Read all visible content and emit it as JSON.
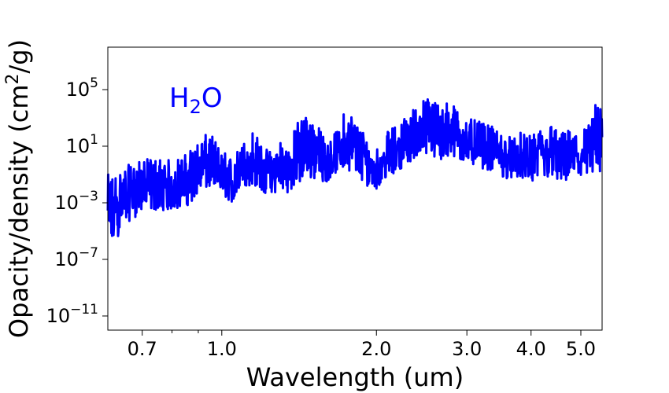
{
  "chart_data": {
    "type": "line",
    "title": "",
    "xlabel": "Wavelength  (um)",
    "ylabel": {
      "main": "Opacity/density  (cm",
      "exp": "2",
      "tail": "/g)"
    },
    "x_scale": "log",
    "y_scale": "log",
    "xlim": [
      0.6,
      5.5
    ],
    "ylim": [
      1e-12,
      100000000.0
    ],
    "x_ticks": [
      {
        "value": 0.7,
        "label": "0.7"
      },
      {
        "value": 1.0,
        "label": "1.0"
      },
      {
        "value": 2.0,
        "label": "2.0"
      },
      {
        "value": 3.0,
        "label": "3.0"
      },
      {
        "value": 4.0,
        "label": "4.0"
      },
      {
        "value": 5.0,
        "label": "5.0"
      }
    ],
    "x_minor_ticks": [
      0.8,
      0.9
    ],
    "y_ticks": [
      {
        "value": 100000.0,
        "base": "10",
        "exp": "5"
      },
      {
        "value": 10.0,
        "base": "10",
        "exp": "1"
      },
      {
        "value": 0.001,
        "base": "10",
        "exp": "−3"
      },
      {
        "value": 1e-07,
        "base": "10",
        "exp": "−7"
      },
      {
        "value": 1e-11,
        "base": "10",
        "exp": "−11"
      }
    ],
    "grid": false,
    "annotation": {
      "main": "H",
      "sub": "2",
      "tail": "O"
    },
    "series": [
      {
        "color": "#0000ff",
        "x": [
          0.6,
          0.63,
          0.66,
          0.7,
          0.75,
          0.8,
          0.85,
          0.9,
          0.95,
          1.0,
          1.05,
          1.1,
          1.15,
          1.2,
          1.25,
          1.3,
          1.35,
          1.4,
          1.45,
          1.5,
          1.55,
          1.6,
          1.65,
          1.7,
          1.75,
          1.8,
          1.85,
          1.9,
          1.95,
          2.0,
          2.1,
          2.2,
          2.3,
          2.4,
          2.5,
          2.6,
          2.7,
          2.8,
          2.9,
          3.0,
          3.2,
          3.4,
          3.6,
          3.8,
          4.0,
          4.2,
          4.4,
          4.6,
          4.8,
          5.0,
          5.2,
          5.4,
          5.5
        ],
        "y_mid": [
          0.0001,
          0.001,
          0.01,
          0.03,
          0.01,
          0.01,
          0.05,
          0.3,
          1.0,
          0.1,
          0.02,
          1.0,
          1.0,
          0.2,
          0.1,
          0.5,
          0.2,
          20.0,
          50.0,
          20.0,
          2.0,
          1.0,
          2.0,
          5.0,
          30.0,
          20.0,
          5.0,
          1.0,
          0.5,
          0.3,
          2.0,
          10.0,
          30.0,
          200.0,
          500.0,
          300.0,
          200.0,
          300.0,
          50.0,
          20.0,
          10.0,
          5.0,
          2.0,
          2.0,
          1.0,
          5.0,
          3.0,
          2.0,
          3.0,
          2.0,
          5.0,
          10.0,
          10.0
        ],
        "y_low": [
          1e-07,
          5e-06,
          5e-05,
          0.0002,
          0.0003,
          0.0003,
          0.0005,
          0.003,
          0.01,
          0.003,
          0.001,
          0.01,
          0.02,
          0.005,
          0.003,
          0.01,
          0.005,
          0.01,
          0.02,
          0.05,
          0.03,
          0.03,
          0.1,
          0.2,
          0.3,
          0.1,
          0.05,
          0.02,
          0.01,
          0.01,
          0.05,
          0.2,
          0.5,
          2.0,
          2.0,
          1.0,
          0.5,
          1.0,
          1.0,
          0.5,
          0.3,
          0.1,
          0.05,
          0.05,
          0.02,
          0.05,
          0.05,
          0.02,
          0.03,
          0.03,
          0.05,
          0.1,
          0.1
        ],
        "y_high": [
          0.1,
          0.3,
          0.5,
          1.0,
          2.0,
          1.0,
          3.0,
          30.0,
          100.0,
          5.0,
          2.0,
          20.0,
          200.0,
          10.0,
          5.0,
          50.0,
          10.0,
          500.0,
          2000.0,
          1000.0,
          200.0,
          30.0,
          50.0,
          1000.0,
          5000.0,
          2000.0,
          500.0,
          100.0,
          30.0,
          10.0,
          100.0,
          500.0,
          2000.0,
          10000.0,
          30000.0,
          30000.0,
          20000.0,
          10000.0,
          5000.0,
          1000.0,
          500.0,
          200.0,
          50.0,
          100.0,
          50.0,
          300.0,
          500.0,
          100.0,
          200.0,
          200.0,
          500.0,
          50000.0,
          1000.0
        ]
      }
    ]
  }
}
